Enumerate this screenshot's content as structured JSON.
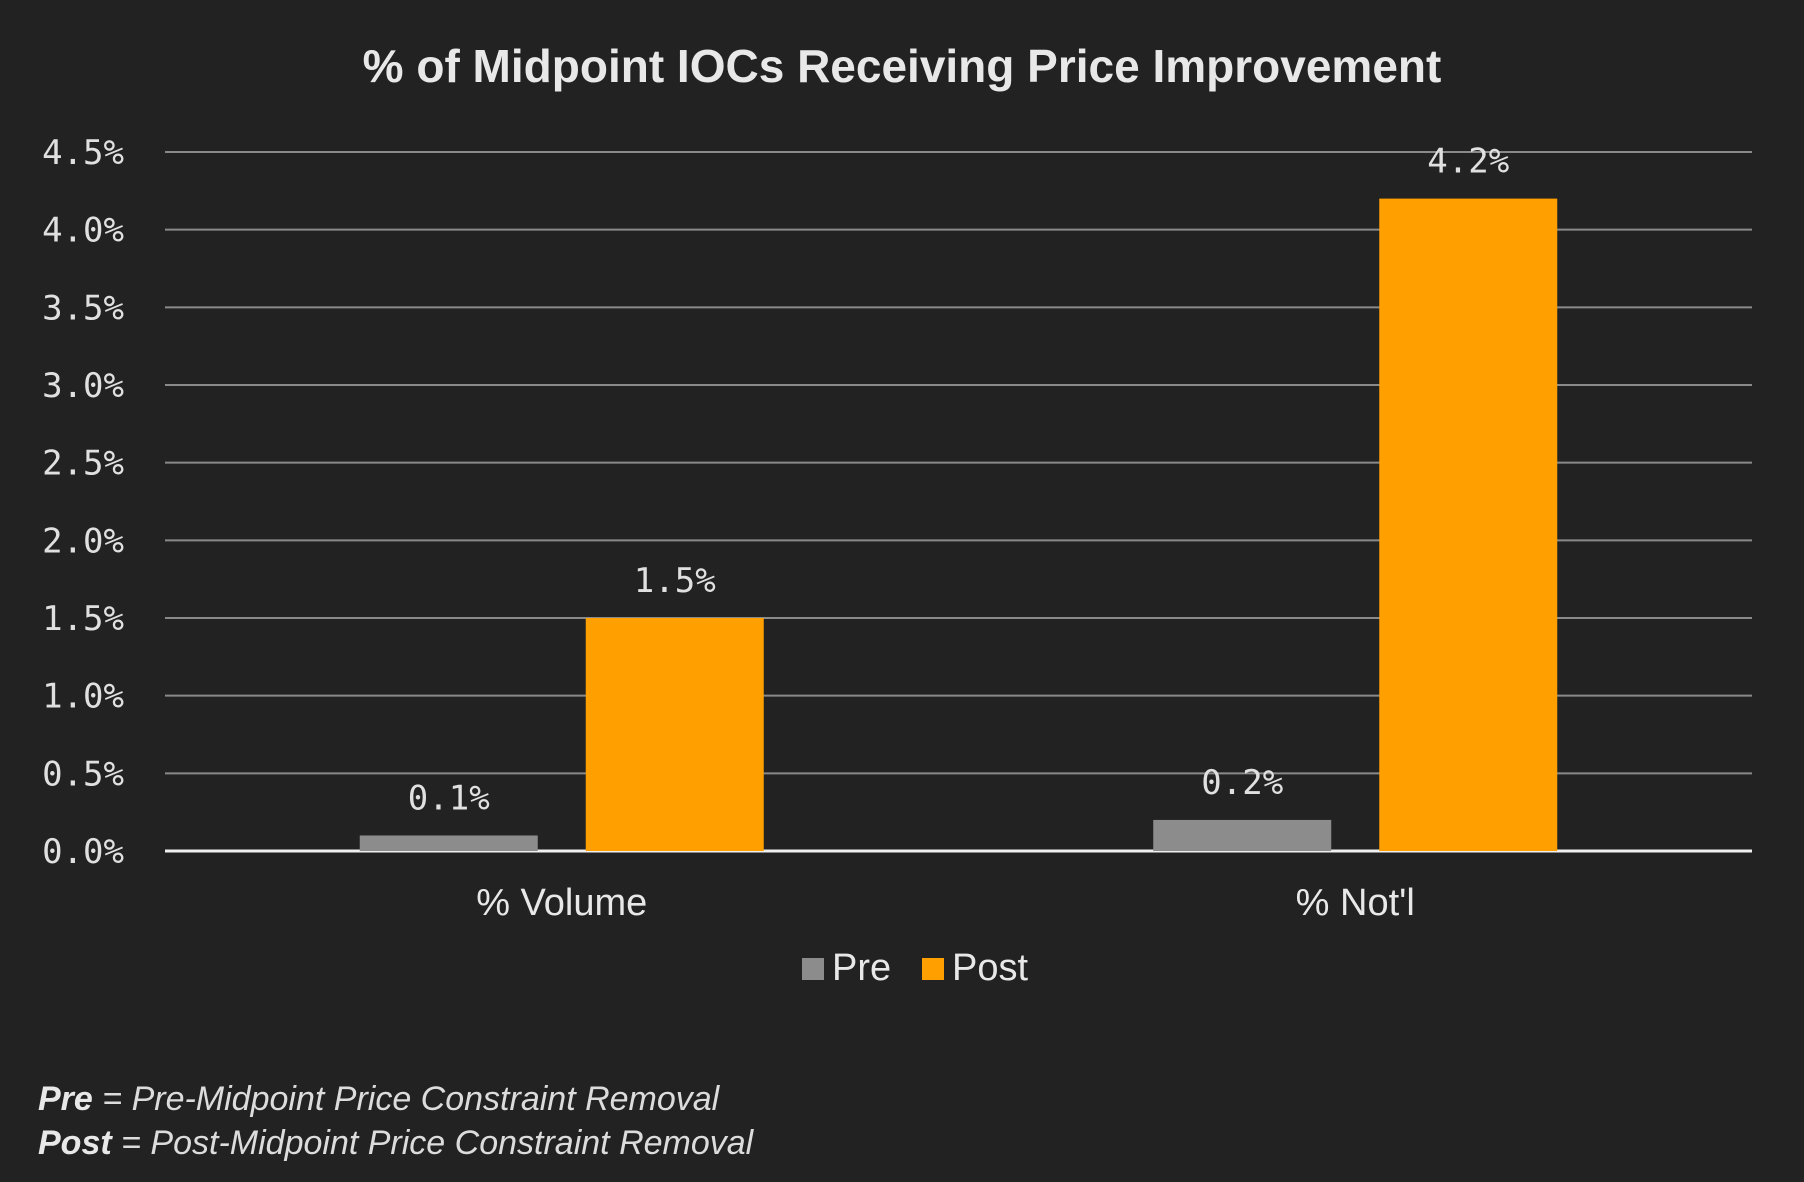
{
  "chart_data": {
    "type": "bar",
    "title": "% of Midpoint IOCs Receiving Price Improvement",
    "categories": [
      "% Volume",
      "% Not'l"
    ],
    "series": [
      {
        "name": "Pre",
        "color": "#8c8c8c",
        "values": [
          0.1,
          0.2
        ],
        "labels": [
          "0.1%",
          "0.2%"
        ]
      },
      {
        "name": "Post",
        "color": "#ffa000",
        "values": [
          1.5,
          4.2
        ],
        "labels": [
          "1.5%",
          "4.2%"
        ]
      }
    ],
    "ylim": [
      0,
      4.5
    ],
    "yticks": [
      "0.0%",
      "0.5%",
      "1.0%",
      "1.5%",
      "2.0%",
      "2.5%",
      "3.0%",
      "3.5%",
      "4.0%",
      "4.5%"
    ],
    "xlabel": "",
    "ylabel": "",
    "grid": true,
    "legend_position": "bottom"
  },
  "footnotes": [
    {
      "term": "Pre",
      "text": " = Pre-Midpoint Price Constraint Removal"
    },
    {
      "term": "Post",
      "text": " = Post-Midpoint Price Constraint Removal"
    }
  ]
}
